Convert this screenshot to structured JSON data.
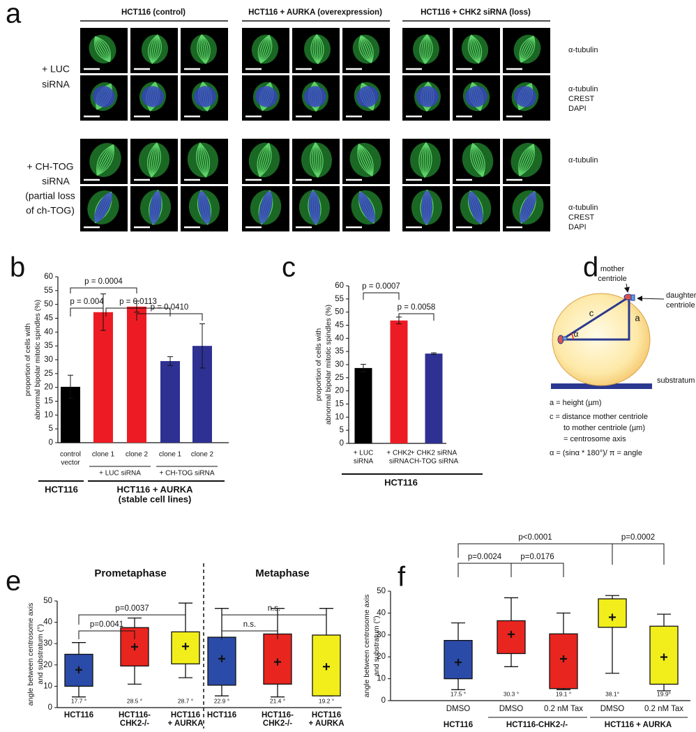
{
  "panel_labels": [
    "a",
    "b",
    "c",
    "d",
    "e",
    "f"
  ],
  "panel_a": {
    "column_headers": [
      "HCT116 (control)",
      "HCT116 + AURKA (overexpression)",
      "HCT116 + CHK2 siRNA (loss)"
    ],
    "row_labels": [
      [
        "+ LUC",
        "siRNA"
      ],
      [
        "+ CH-TOG",
        "siRNA",
        "(partial loss",
        "of ch-TOG)"
      ]
    ],
    "channel_labels": [
      "α-tubulin",
      "CREST",
      "DAPI"
    ]
  },
  "panel_d": {
    "mother": [
      "mother",
      "centriole"
    ],
    "daughter": [
      "daughter",
      "centriole"
    ],
    "side_c": "c",
    "side_a": "a",
    "angle": "α",
    "substratum": "substratum",
    "legend": [
      "a = height (µm)",
      "c = distance mother centriole",
      "to mother centriole (µm)",
      "= centrosome axis",
      "α = (sinα * 180°)/ π = angle"
    ]
  },
  "chart_data": [
    {
      "type": "bar",
      "ylabel": [
        "proportion of cells with",
        "abnormal bipolar mitotic spindles (%)"
      ],
      "categories": [
        [
          "control",
          "vector"
        ],
        "clone 1",
        "clone 2",
        "clone 1",
        "clone 2"
      ],
      "values": [
        20.2,
        47.2,
        49.2,
        29.5,
        35
      ],
      "errors": [
        4.2,
        6.6,
        2,
        1.6,
        8
      ],
      "colors": [
        "#000000",
        "#ed1c24",
        "#ed1c24",
        "#2e3192",
        "#2e3192"
      ],
      "ylim": [
        0,
        60
      ],
      "yticks": [
        0,
        5,
        10,
        15,
        20,
        25,
        30,
        35,
        40,
        45,
        50,
        55,
        60
      ],
      "group_labels": [
        "+ LUC siRNA",
        "+ CH-TOG siRNA"
      ],
      "cell_line_labels": [
        "HCT116",
        "HCT116 + AURKA",
        "(stable cell lines)"
      ],
      "significance": [
        "p = 0.0004",
        "p = 0.004",
        "p = 0.0113",
        "p = 0.0410"
      ]
    },
    {
      "type": "bar",
      "ylabel": [
        "proportion of cells with",
        "abnormal bipolar mitotic spindles (%)"
      ],
      "categories": [
        [
          "+ LUC",
          "siRNA"
        ],
        [
          "+ CHK2",
          "siRNA"
        ],
        [
          "+ CHK2 siRNA",
          "CH-TOG siRNA"
        ]
      ],
      "values": [
        28.7,
        46.8,
        34.2
      ],
      "errors": [
        1.4,
        1.3,
        0.3
      ],
      "colors": [
        "#000000",
        "#ed1c24",
        "#2e3192"
      ],
      "ylim": [
        0,
        60
      ],
      "yticks": [
        0,
        5,
        10,
        15,
        20,
        25,
        30,
        35,
        40,
        45,
        50,
        55,
        60
      ],
      "cell_line_labels": [
        "HCT116"
      ],
      "significance": [
        "p = 0.0007",
        "p = 0.0058"
      ]
    },
    {
      "type": "box",
      "titles": [
        "Prometaphase",
        "Metaphase"
      ],
      "ylabel": [
        "angle between centrosome axis",
        "and substratum (°)"
      ],
      "categories": [
        "HCT116",
        [
          "HCT116-",
          "CHK2-/-"
        ],
        [
          "HCT116",
          "+ AURKA"
        ],
        "HCT116",
        [
          "HCT116-",
          "CHK2-/-"
        ],
        [
          "HCT116",
          "+ AURKA"
        ]
      ],
      "colors": [
        "#2b4ba8",
        "#e8251f",
        "#f2ee1b",
        "#2b4ba8",
        "#e8251f",
        "#f2ee1b"
      ],
      "whisker_low": [
        5,
        11,
        14,
        5.5,
        5,
        5.5
      ],
      "q1": [
        10,
        19.5,
        20.5,
        10.5,
        11,
        5.5
      ],
      "q3": [
        25,
        37.5,
        35.5,
        33,
        34.5,
        34
      ],
      "whisker_high": [
        30.5,
        42,
        49,
        46.5,
        46.5,
        46.5
      ],
      "values": [
        17.7,
        28.5,
        28.7,
        22.9,
        21.4,
        19.2
      ],
      "value_labels": [
        "17.7 °",
        "28.5 °",
        "28.7 °",
        "22.9 °",
        "21.4 °",
        "19.2 °"
      ],
      "ylim": [
        0,
        50
      ],
      "yticks": [
        0,
        10,
        20,
        30,
        40,
        50
      ],
      "significance": [
        "p=0.0041",
        "p=0.0037",
        "n.s.",
        "n.s."
      ]
    },
    {
      "type": "box",
      "ylabel": [
        "angle between centrosome axis",
        "and substratum (°)"
      ],
      "categories": [
        "DMSO",
        "DMSO",
        "0.2 nM Tax",
        "DMSO",
        "0.2 nM Tax"
      ],
      "colors": [
        "#2b4ba8",
        "#e8251f",
        "#e8251f",
        "#f2ee1b",
        "#f2ee1b"
      ],
      "whisker_low": [
        5,
        15.5,
        5,
        12.5,
        4.5
      ],
      "q1": [
        10,
        21.5,
        5.5,
        33.5,
        7.5
      ],
      "q3": [
        27.5,
        36.5,
        30.5,
        46.5,
        34
      ],
      "whisker_high": [
        35.5,
        47,
        40,
        48,
        39.5
      ],
      "values": [
        17.5,
        30.3,
        19.1,
        38.1,
        19.9
      ],
      "value_labels": [
        "17.5 °",
        "30.3 °",
        "19.1 °",
        "38.1°",
        "19.9°"
      ],
      "ylim": [
        0,
        50
      ],
      "yticks": [
        0,
        10,
        20,
        30,
        40,
        50
      ],
      "group_labels": [
        "HCT116",
        "HCT116-CHK2-/-",
        "HCT116 + AURKA"
      ],
      "significance": [
        "p<0.0001",
        "p=0.0002",
        "p=0.0024",
        "p=0.0176"
      ]
    }
  ]
}
